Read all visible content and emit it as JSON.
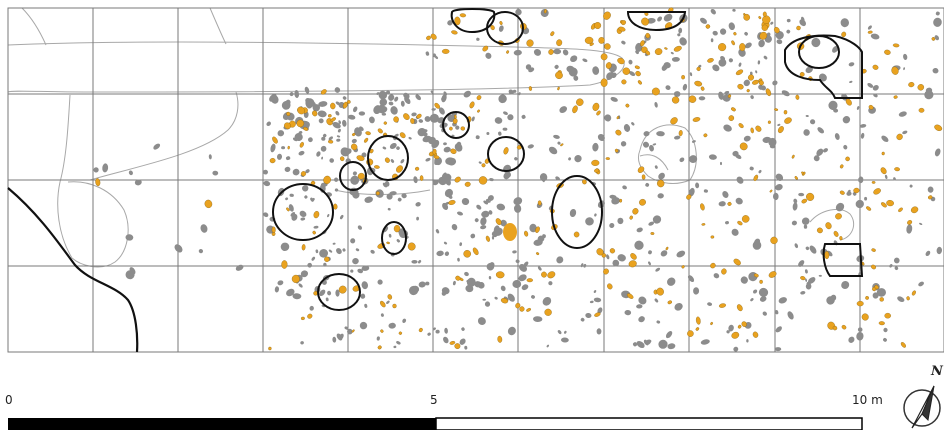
{
  "scale_bar": {
    "label_start": "0",
    "label_mid": "5",
    "label_end": "10 m"
  },
  "north_arrow": {
    "label": "N"
  },
  "colors": {
    "grid": "#7a7a7a",
    "feature_outline": "#111111",
    "stone": "#8c8c8c",
    "artifact": "#e9a21f",
    "contour": "#a8a8a8"
  }
}
